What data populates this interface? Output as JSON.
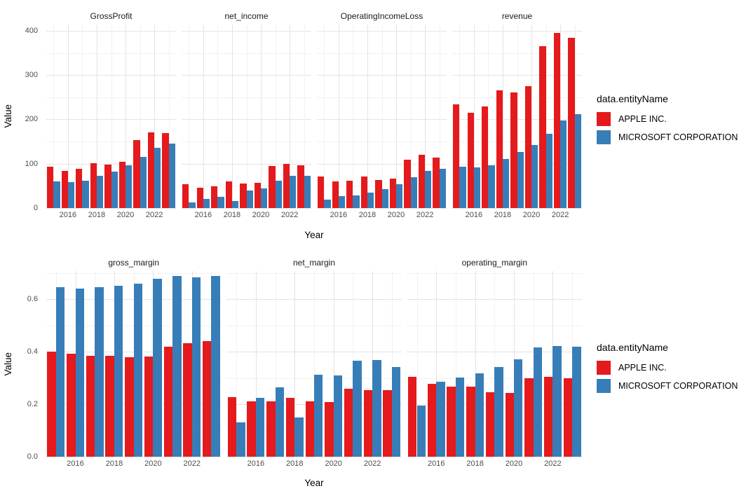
{
  "figure": {
    "background": "#ffffff",
    "grid_major_color": "#e3e3e3",
    "grid_minor_color": "#f1f1f1",
    "tick_text_color": "#4d4d4d"
  },
  "legend": {
    "title": "data.entityName",
    "position": "right",
    "items": [
      {
        "label": "APPLE INC.",
        "color": "#E41A1C"
      },
      {
        "label": "MICROSOFT CORPORATION",
        "color": "#377EB8"
      }
    ]
  },
  "chart_data": [
    {
      "type": "bar",
      "grouping": "dodged",
      "grid": true,
      "legend_position": "right",
      "xlabel": "Year",
      "ylabel": "Value",
      "x": [
        2015,
        2016,
        2017,
        2018,
        2019,
        2020,
        2021,
        2022,
        2023
      ],
      "x_tick_years": [
        2016,
        2018,
        2020,
        2022
      ],
      "x_tick_labels": [
        "2016",
        "2018",
        "2020",
        "2022"
      ],
      "y_ticks": [
        {
          "value": 0,
          "label": "0"
        },
        {
          "value": 100,
          "label": "100"
        },
        {
          "value": 200,
          "label": "200"
        },
        {
          "value": 300,
          "label": "300"
        },
        {
          "value": 400,
          "label": "400"
        }
      ],
      "y_minor": [
        50,
        150,
        250,
        350
      ],
      "ylim": [
        0,
        414
      ],
      "facets": [
        {
          "title": "GrossProfit",
          "series": [
            {
              "name": "APPLE INC.",
              "values": [
                93.6,
                84.3,
                88.2,
                101.8,
                98.4,
                105.0,
                152.8,
                170.8,
                169.1
              ]
            },
            {
              "name": "MICROSOFT CORPORATION",
              "values": [
                60.5,
                58.4,
                62.3,
                72.0,
                82.9,
                96.9,
                115.9,
                135.6,
                146.1
              ]
            }
          ]
        },
        {
          "title": "net_income",
          "series": [
            {
              "name": "APPLE INC.",
              "values": [
                53.4,
                45.7,
                48.4,
                59.5,
                55.3,
                57.4,
                94.7,
                99.8,
                97.0
              ]
            },
            {
              "name": "MICROSOFT CORPORATION",
              "values": [
                12.2,
                20.5,
                25.5,
                16.6,
                39.2,
                44.3,
                61.3,
                72.7,
                72.4
              ]
            }
          ]
        },
        {
          "title": "OperatingIncomeLoss",
          "series": [
            {
              "name": "APPLE INC.",
              "values": [
                71.2,
                60.0,
                61.3,
                70.9,
                63.9,
                66.3,
                108.9,
                119.4,
                114.3
              ]
            },
            {
              "name": "MICROSOFT CORPORATION",
              "values": [
                18.2,
                26.1,
                29.0,
                35.1,
                43.0,
                53.0,
                69.9,
                83.4,
                88.5
              ]
            }
          ]
        },
        {
          "title": "revenue",
          "series": [
            {
              "name": "APPLE INC.",
              "values": [
                233.7,
                215.6,
                229.2,
                265.6,
                260.2,
                274.5,
                365.8,
                394.3,
                383.3
              ]
            },
            {
              "name": "MICROSOFT CORPORATION",
              "values": [
                93.6,
                91.2,
                96.6,
                110.4,
                125.8,
                143.0,
                168.1,
                198.3,
                211.9
              ]
            }
          ]
        }
      ]
    },
    {
      "type": "bar",
      "grouping": "dodged",
      "grid": true,
      "legend_position": "right",
      "xlabel": "Year",
      "ylabel": "Value",
      "x": [
        2015,
        2016,
        2017,
        2018,
        2019,
        2020,
        2021,
        2022,
        2023
      ],
      "x_tick_years": [
        2016,
        2018,
        2020,
        2022
      ],
      "x_tick_labels": [
        "2016",
        "2018",
        "2020",
        "2022"
      ],
      "y_ticks": [
        {
          "value": 0,
          "label": "0.0"
        },
        {
          "value": 0.2,
          "label": "0.2"
        },
        {
          "value": 0.4,
          "label": "0.4"
        },
        {
          "value": 0.6,
          "label": "0.6"
        }
      ],
      "y_minor": [
        0.1,
        0.3,
        0.5,
        0.7
      ],
      "ylim": [
        0,
        0.707
      ],
      "facets": [
        {
          "title": "gross_margin",
          "series": [
            {
              "name": "APPLE INC.",
              "values": [
                0.401,
                0.391,
                0.385,
                0.383,
                0.378,
                0.382,
                0.418,
                0.433,
                0.441
              ]
            },
            {
              "name": "MICROSOFT CORPORATION",
              "values": [
                0.647,
                0.64,
                0.645,
                0.652,
                0.659,
                0.678,
                0.689,
                0.684,
                0.689
              ]
            }
          ]
        },
        {
          "title": "net_margin",
          "series": [
            {
              "name": "APPLE INC.",
              "values": [
                0.228,
                0.212,
                0.211,
                0.224,
                0.212,
                0.209,
                0.259,
                0.253,
                0.253
              ]
            },
            {
              "name": "MICROSOFT CORPORATION",
              "values": [
                0.13,
                0.225,
                0.264,
                0.15,
                0.312,
                0.31,
                0.365,
                0.367,
                0.342
              ]
            }
          ]
        },
        {
          "title": "operating_margin",
          "series": [
            {
              "name": "APPLE INC.",
              "values": [
                0.305,
                0.278,
                0.268,
                0.267,
                0.246,
                0.242,
                0.298,
                0.303,
                0.298
              ]
            },
            {
              "name": "MICROSOFT CORPORATION",
              "values": [
                0.194,
                0.286,
                0.301,
                0.318,
                0.341,
                0.37,
                0.416,
                0.421,
                0.418
              ]
            }
          ]
        }
      ]
    }
  ]
}
